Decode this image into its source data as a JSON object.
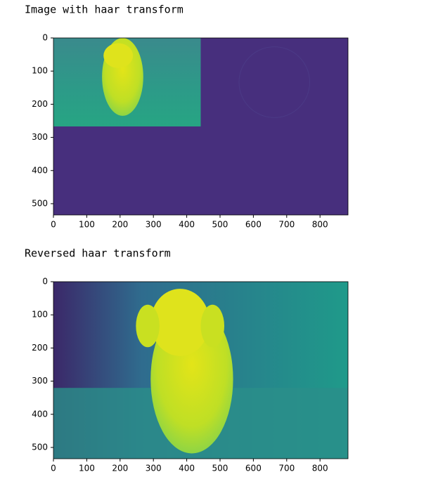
{
  "chart_data": [
    {
      "type": "image",
      "title": "Image with haar transform",
      "xlim": [
        0,
        884
      ],
      "ylim": [
        534,
        0
      ],
      "xticks": [
        0,
        100,
        200,
        300,
        400,
        500,
        600,
        700,
        800
      ],
      "yticks": [
        0,
        100,
        200,
        300,
        400,
        500
      ]
    },
    {
      "type": "image",
      "title": "Reversed haar transform",
      "xlim": [
        0,
        884
      ],
      "ylim": [
        534,
        0
      ],
      "xticks": [
        0,
        100,
        200,
        300,
        400,
        500,
        600,
        700,
        800
      ],
      "yticks": [
        0,
        100,
        200,
        300,
        400,
        500
      ]
    }
  ]
}
